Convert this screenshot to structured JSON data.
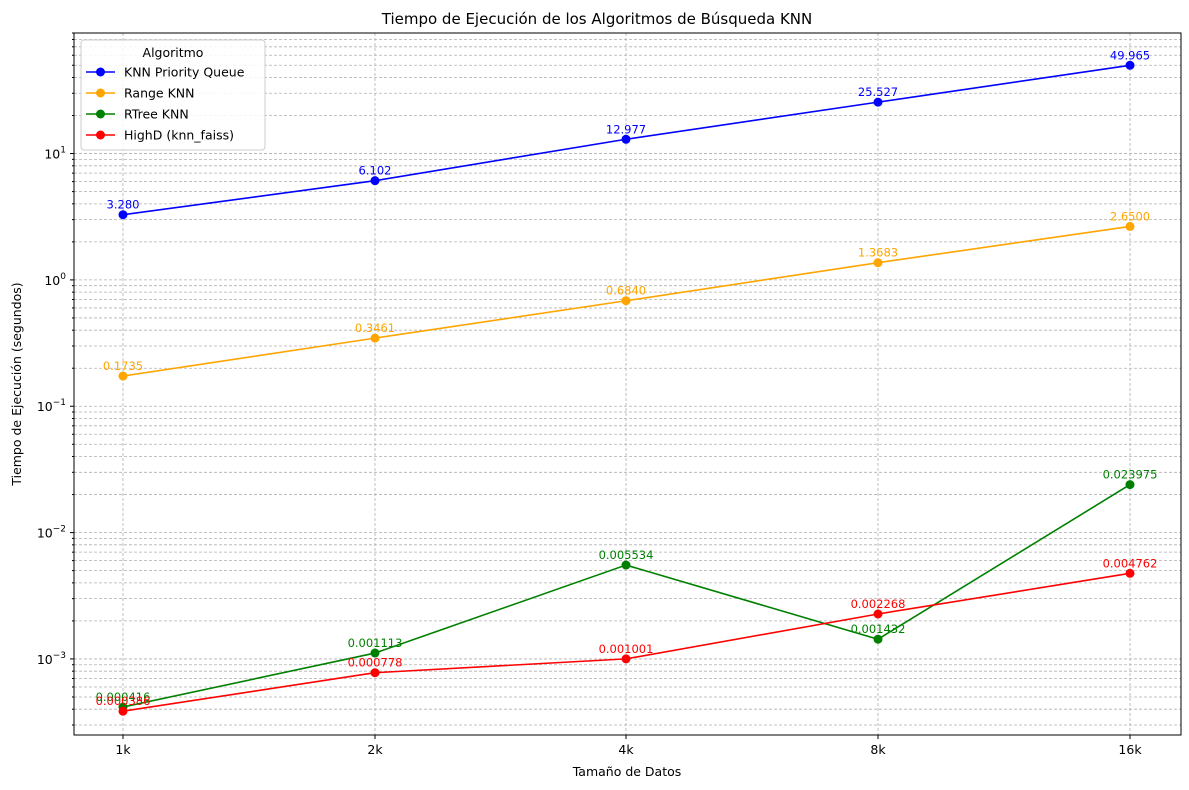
{
  "chart_data": {
    "type": "line",
    "title": "Tiempo de Ejecución de los Algoritmos de Búsqueda KNN",
    "xlabel": "Tamaño de Datos",
    "ylabel": "Tiempo de Ejecución (segundos)",
    "categories": [
      "1k",
      "2k",
      "4k",
      "8k",
      "16k"
    ],
    "y_scale": "log",
    "ylim": [
      0.00025,
      90
    ],
    "y_ticks": [
      {
        "value": 0.001,
        "base": "10",
        "exp": "−3"
      },
      {
        "value": 0.01,
        "base": "10",
        "exp": "−2"
      },
      {
        "value": 0.1,
        "base": "10",
        "exp": "−1"
      },
      {
        "value": 1,
        "base": "10",
        "exp": "0"
      },
      {
        "value": 10,
        "base": "10",
        "exp": "1"
      }
    ],
    "grid": true,
    "legend": {
      "title": "Algoritmo",
      "placement": "top-left"
    },
    "series": [
      {
        "name": "KNN Priority Queue",
        "color": "#0000ff",
        "values": [
          3.28,
          6.102,
          12.977,
          25.527,
          49.965
        ],
        "labels": [
          "3.280",
          "6.102",
          "12.977",
          "25.527",
          "49.965"
        ]
      },
      {
        "name": "Range KNN",
        "color": "#ffa500",
        "values": [
          0.1735,
          0.3461,
          0.684,
          1.3683,
          2.65
        ],
        "labels": [
          "0.1735",
          "0.3461",
          "0.6840",
          "1.3683",
          "2.6500"
        ]
      },
      {
        "name": "RTree KNN",
        "color": "#008000",
        "values": [
          0.000416,
          0.001113,
          0.005534,
          0.001432,
          0.023975
        ],
        "labels": [
          "0.000416",
          "0.001113",
          "0.005534",
          "0.001432",
          "0.023975"
        ]
      },
      {
        "name": "HighD (knn_faiss)",
        "color": "#ff0000",
        "values": [
          0.000386,
          0.000778,
          0.001001,
          0.002268,
          0.004762
        ],
        "labels": [
          "0.000386",
          "0.000778",
          "0.001001",
          "0.002268",
          "0.004762"
        ]
      }
    ]
  }
}
